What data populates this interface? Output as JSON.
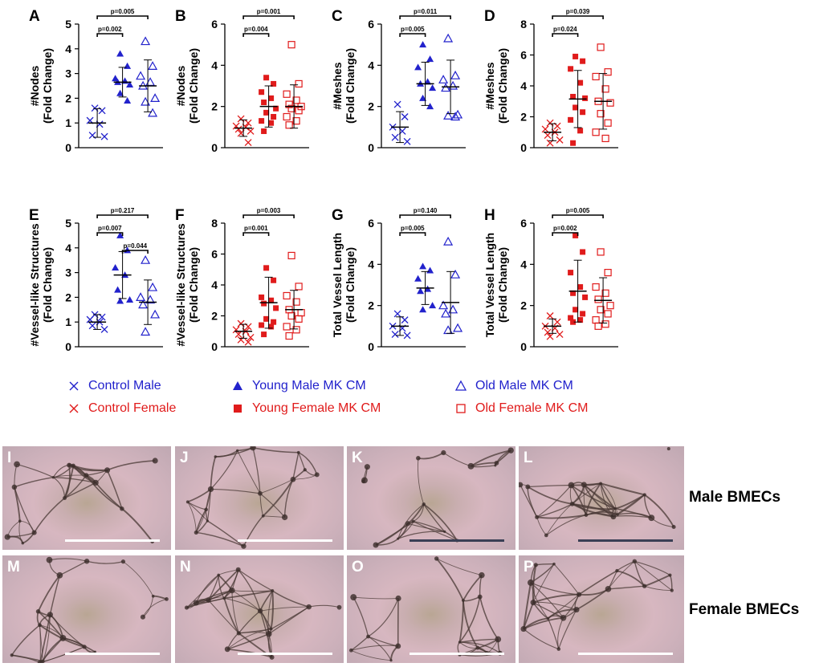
{
  "colors": {
    "blue": "#2222cc",
    "red": "#e01b1b",
    "black": "#000000"
  },
  "chart_data": [
    {
      "panel": "A",
      "type": "scatter",
      "ylabel": "#Nodes\n(Fold Change)",
      "ylim": [
        0,
        5
      ],
      "yticks": [
        0,
        1,
        2,
        3,
        4,
        5
      ],
      "color": "blue",
      "groups": [
        {
          "name": "Control Male",
          "marker": "x",
          "mean": 1.0,
          "sd": 0.58,
          "points": [
            1.6,
            1.5,
            1.1,
            0.95,
            0.5,
            0.45
          ]
        },
        {
          "name": "Young Male MK CM",
          "marker": "tri-filled",
          "mean": 2.65,
          "sd": 0.6,
          "points": [
            3.8,
            3.3,
            2.8,
            2.7,
            2.65,
            2.55,
            2.2,
            1.9
          ]
        },
        {
          "name": "Old Male MK CM",
          "marker": "tri-open",
          "mean": 2.5,
          "sd": 1.05,
          "points": [
            4.3,
            3.3,
            2.9,
            2.65,
            2.5,
            2.0,
            1.85,
            1.4
          ]
        }
      ],
      "brackets": [
        {
          "from": 0,
          "to": 1,
          "label": "p=0.002",
          "level": 0
        },
        {
          "from": 0,
          "to": 2,
          "label": "p=0.005",
          "level": 1
        }
      ]
    },
    {
      "panel": "B",
      "type": "scatter",
      "ylabel": "#Nodes\n(Fold Change)",
      "ylim": [
        0,
        6
      ],
      "yticks": [
        0,
        2,
        4,
        6
      ],
      "color": "red",
      "groups": [
        {
          "name": "Control Female",
          "marker": "x",
          "mean": 0.95,
          "sd": 0.4,
          "points": [
            1.4,
            1.2,
            1.05,
            1.0,
            0.9,
            0.8,
            0.7,
            0.25
          ]
        },
        {
          "name": "Young Female MK CM",
          "marker": "sq-filled",
          "mean": 2.0,
          "sd": 1.0,
          "points": [
            3.4,
            3.1,
            2.7,
            2.4,
            2.2,
            1.9,
            1.7,
            1.5,
            1.3,
            1.2,
            0.8
          ]
        },
        {
          "name": "Old Female MK CM",
          "marker": "sq-open",
          "mean": 2.0,
          "sd": 1.05,
          "points": [
            5.0,
            3.1,
            2.6,
            2.3,
            2.1,
            2.0,
            1.9,
            1.8,
            1.5,
            1.3,
            1.1
          ]
        }
      ],
      "brackets": [
        {
          "from": 0,
          "to": 1,
          "label": "p=0.004",
          "level": 0
        },
        {
          "from": 0,
          "to": 2,
          "label": "p=0.001",
          "level": 1
        }
      ]
    },
    {
      "panel": "C",
      "type": "scatter",
      "ylabel": "#Meshes\n(Fold Change)",
      "ylim": [
        0,
        6
      ],
      "yticks": [
        0,
        2,
        4,
        6
      ],
      "color": "blue",
      "groups": [
        {
          "name": "Control Male",
          "marker": "x",
          "mean": 1.0,
          "sd": 0.75,
          "points": [
            2.1,
            1.5,
            1.0,
            0.8,
            0.5,
            0.3
          ]
        },
        {
          "name": "Young Male MK CM",
          "marker": "tri-filled",
          "mean": 3.1,
          "sd": 1.05,
          "points": [
            5.0,
            4.3,
            3.9,
            3.2,
            3.1,
            2.9,
            2.4,
            2.0
          ]
        },
        {
          "name": "Old Male MK CM",
          "marker": "tri-open",
          "mean": 2.95,
          "sd": 1.3,
          "points": [
            5.3,
            3.5,
            3.3,
            3.0,
            2.9,
            1.6,
            1.55,
            1.5
          ]
        }
      ],
      "brackets": [
        {
          "from": 0,
          "to": 1,
          "label": "p=0.005",
          "level": 0
        },
        {
          "from": 0,
          "to": 2,
          "label": "p=0.011",
          "level": 1
        }
      ]
    },
    {
      "panel": "D",
      "type": "scatter",
      "ylabel": "#Meshes\n(Fold Change)",
      "ylim": [
        0,
        8
      ],
      "yticks": [
        0,
        2,
        4,
        6,
        8
      ],
      "color": "red",
      "groups": [
        {
          "name": "Control Female",
          "marker": "x",
          "mean": 1.0,
          "sd": 0.55,
          "points": [
            1.6,
            1.4,
            1.2,
            1.0,
            0.8,
            0.5,
            0.3
          ]
        },
        {
          "name": "Young Female MK CM",
          "marker": "sq-filled",
          "mean": 3.15,
          "sd": 1.85,
          "points": [
            5.9,
            5.6,
            5.1,
            4.2,
            3.3,
            3.2,
            2.6,
            2.3,
            1.8,
            1.1,
            0.3
          ]
        },
        {
          "name": "Old Female MK CM",
          "marker": "sq-open",
          "mean": 3.0,
          "sd": 1.8,
          "points": [
            6.5,
            4.9,
            4.6,
            3.8,
            3.0,
            2.9,
            2.2,
            1.6,
            1.0,
            0.6
          ]
        }
      ],
      "brackets": [
        {
          "from": 0,
          "to": 1,
          "label": "p=0.024",
          "level": 0
        },
        {
          "from": 0,
          "to": 2,
          "label": "p=0.039",
          "level": 1
        }
      ]
    },
    {
      "panel": "E",
      "type": "scatter",
      "ylabel": "#Vessel-like Structures\n(Fold Change)",
      "ylim": [
        0,
        5
      ],
      "yticks": [
        0,
        1,
        2,
        3,
        4,
        5
      ],
      "color": "blue",
      "groups": [
        {
          "name": "Control Male",
          "marker": "x",
          "mean": 1.0,
          "sd": 0.3,
          "points": [
            1.3,
            1.2,
            1.1,
            1.0,
            0.85,
            0.7
          ]
        },
        {
          "name": "Young Male MK CM",
          "marker": "tri-filled",
          "mean": 2.9,
          "sd": 0.95,
          "points": [
            4.5,
            3.9,
            3.2,
            2.9,
            2.3,
            1.9,
            1.85
          ]
        },
        {
          "name": "Old Male MK CM",
          "marker": "tri-open",
          "mean": 1.8,
          "sd": 0.9,
          "points": [
            3.5,
            2.4,
            2.0,
            1.9,
            1.7,
            1.3,
            0.6
          ]
        }
      ],
      "brackets": [
        {
          "from": 0,
          "to": 1,
          "label": "p=0.007",
          "level": 0
        },
        {
          "from": 1,
          "to": 2,
          "label": "p=0.044",
          "level": -1
        },
        {
          "from": 0,
          "to": 2,
          "label": "p=0.217",
          "level": 1
        }
      ]
    },
    {
      "panel": "F",
      "type": "scatter",
      "ylabel": "#Vessel-like Structures\n(Fold Change)",
      "ylim": [
        0,
        8
      ],
      "yticks": [
        0,
        2,
        4,
        6,
        8
      ],
      "color": "red",
      "groups": [
        {
          "name": "Control Female",
          "marker": "x",
          "mean": 1.0,
          "sd": 0.45,
          "points": [
            1.5,
            1.3,
            1.1,
            1.0,
            0.8,
            0.6,
            0.45,
            0.3
          ]
        },
        {
          "name": "Young Female MK CM",
          "marker": "sq-filled",
          "mean": 2.85,
          "sd": 1.65,
          "points": [
            5.1,
            4.3,
            3.2,
            3.0,
            2.8,
            2.5,
            1.8,
            1.6,
            1.4,
            1.3,
            0.8
          ]
        },
        {
          "name": "Old Female MK CM",
          "marker": "sq-open",
          "mean": 2.4,
          "sd": 1.25,
          "points": [
            5.9,
            3.9,
            3.3,
            2.9,
            2.4,
            2.2,
            2.0,
            1.8,
            1.3,
            1.1,
            0.7
          ]
        }
      ],
      "brackets": [
        {
          "from": 0,
          "to": 1,
          "label": "p=0.001",
          "level": 0
        },
        {
          "from": 0,
          "to": 2,
          "label": "p=0.003",
          "level": 1
        }
      ]
    },
    {
      "panel": "G",
      "type": "scatter",
      "ylabel": "Total Vessel Length\n(Fold Change)",
      "ylim": [
        0,
        6
      ],
      "yticks": [
        0,
        2,
        4,
        6
      ],
      "color": "blue",
      "groups": [
        {
          "name": "Control Male",
          "marker": "x",
          "mean": 1.0,
          "sd": 0.45,
          "points": [
            1.6,
            1.3,
            1.0,
            0.9,
            0.6,
            0.55
          ]
        },
        {
          "name": "Young Male MK CM",
          "marker": "tri-filled",
          "mean": 2.85,
          "sd": 0.8,
          "points": [
            3.9,
            3.7,
            3.3,
            2.8,
            2.7,
            2.0,
            1.8
          ]
        },
        {
          "name": "Old Male MK CM",
          "marker": "tri-open",
          "mean": 2.15,
          "sd": 1.5,
          "points": [
            5.1,
            3.5,
            2.0,
            1.8,
            1.6,
            0.9,
            0.8
          ]
        }
      ],
      "brackets": [
        {
          "from": 0,
          "to": 1,
          "label": "p=0.005",
          "level": 0
        },
        {
          "from": 0,
          "to": 2,
          "label": "p=0.140",
          "level": 1
        }
      ]
    },
    {
      "panel": "H",
      "type": "scatter",
      "ylabel": "Total Vessel Length\n(Fold Change)",
      "ylim": [
        0,
        6
      ],
      "yticks": [
        0,
        2,
        4,
        6
      ],
      "color": "red",
      "groups": [
        {
          "name": "Control Female",
          "marker": "x",
          "mean": 1.0,
          "sd": 0.35,
          "points": [
            1.5,
            1.2,
            1.0,
            0.9,
            0.7,
            0.6,
            0.5
          ]
        },
        {
          "name": "Young Female MK CM",
          "marker": "sq-filled",
          "mean": 2.7,
          "sd": 1.5,
          "points": [
            5.4,
            4.6,
            3.6,
            2.9,
            2.6,
            2.4,
            1.8,
            1.6,
            1.4,
            1.3,
            1.2
          ]
        },
        {
          "name": "Old Female MK CM",
          "marker": "sq-open",
          "mean": 2.25,
          "sd": 1.1,
          "points": [
            4.6,
            3.6,
            2.9,
            2.6,
            2.3,
            2.0,
            1.8,
            1.6,
            1.3,
            1.1,
            1.0
          ]
        }
      ],
      "brackets": [
        {
          "from": 0,
          "to": 1,
          "label": "p=0.002",
          "level": 0
        },
        {
          "from": 0,
          "to": 2,
          "label": "p=0.005",
          "level": 1
        }
      ]
    }
  ],
  "legend": [
    {
      "label": "Control Male",
      "marker": "x",
      "color": "blue"
    },
    {
      "label": "Young Male MK CM",
      "marker": "tri-filled",
      "color": "blue"
    },
    {
      "label": "Old Male MK CM",
      "marker": "tri-open",
      "color": "blue"
    },
    {
      "label": "Control Female",
      "marker": "x",
      "color": "red"
    },
    {
      "label": "Young Female MK CM",
      "marker": "sq-filled",
      "color": "red"
    },
    {
      "label": "Old Female MK CM",
      "marker": "sq-open",
      "color": "red"
    }
  ],
  "micrographs": {
    "male": [
      "I",
      "J",
      "K",
      "L"
    ],
    "female": [
      "M",
      "N",
      "O",
      "P"
    ],
    "row_labels": {
      "male": "Male BMECs",
      "female": "Female BMECs"
    }
  }
}
